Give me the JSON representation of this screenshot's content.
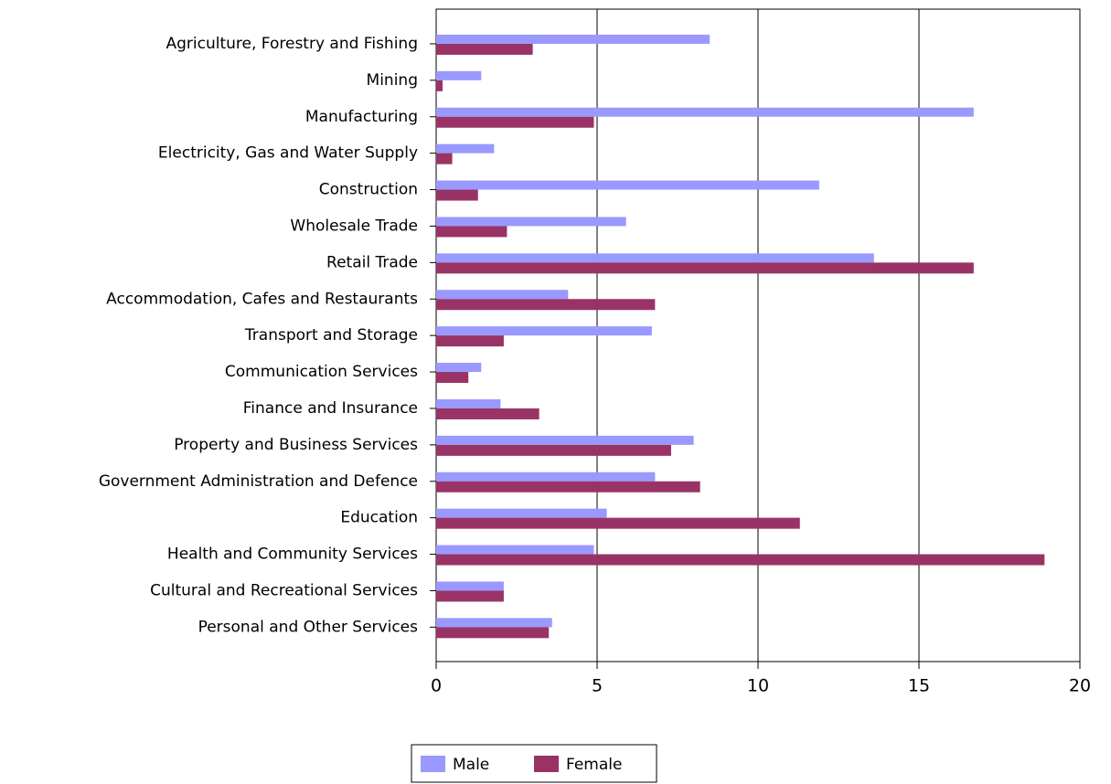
{
  "chart_data": {
    "type": "hbar",
    "categories": [
      "Agriculture, Forestry and Fishing",
      "Mining",
      "Manufacturing",
      "Electricity, Gas and Water Supply",
      "Construction",
      "Wholesale Trade",
      "Retail Trade",
      "Accommodation, Cafes and Restaurants",
      "Transport and Storage",
      "Communication Services",
      "Finance and Insurance",
      "Property and Business Services",
      "Government Administration and Defence",
      "Education",
      "Health and Community Services",
      "Cultural and Recreational Services",
      "Personal and Other Services"
    ],
    "series": [
      {
        "name": "Male",
        "color": "#9999ff",
        "values": [
          8.5,
          1.4,
          16.7,
          1.8,
          11.9,
          5.9,
          13.6,
          4.1,
          6.7,
          1.4,
          2.0,
          8.0,
          6.8,
          5.3,
          4.9,
          2.1,
          3.6
        ]
      },
      {
        "name": "Female",
        "color": "#993366",
        "values": [
          3.0,
          0.2,
          4.9,
          0.5,
          1.3,
          2.2,
          16.7,
          6.8,
          2.1,
          1.0,
          3.2,
          7.3,
          8.2,
          11.3,
          18.9,
          2.1,
          3.5
        ]
      }
    ],
    "xlim": [
      0,
      20
    ],
    "xticks": [
      0,
      5,
      10,
      15,
      20
    ],
    "grid": true,
    "legend": "bottom"
  }
}
